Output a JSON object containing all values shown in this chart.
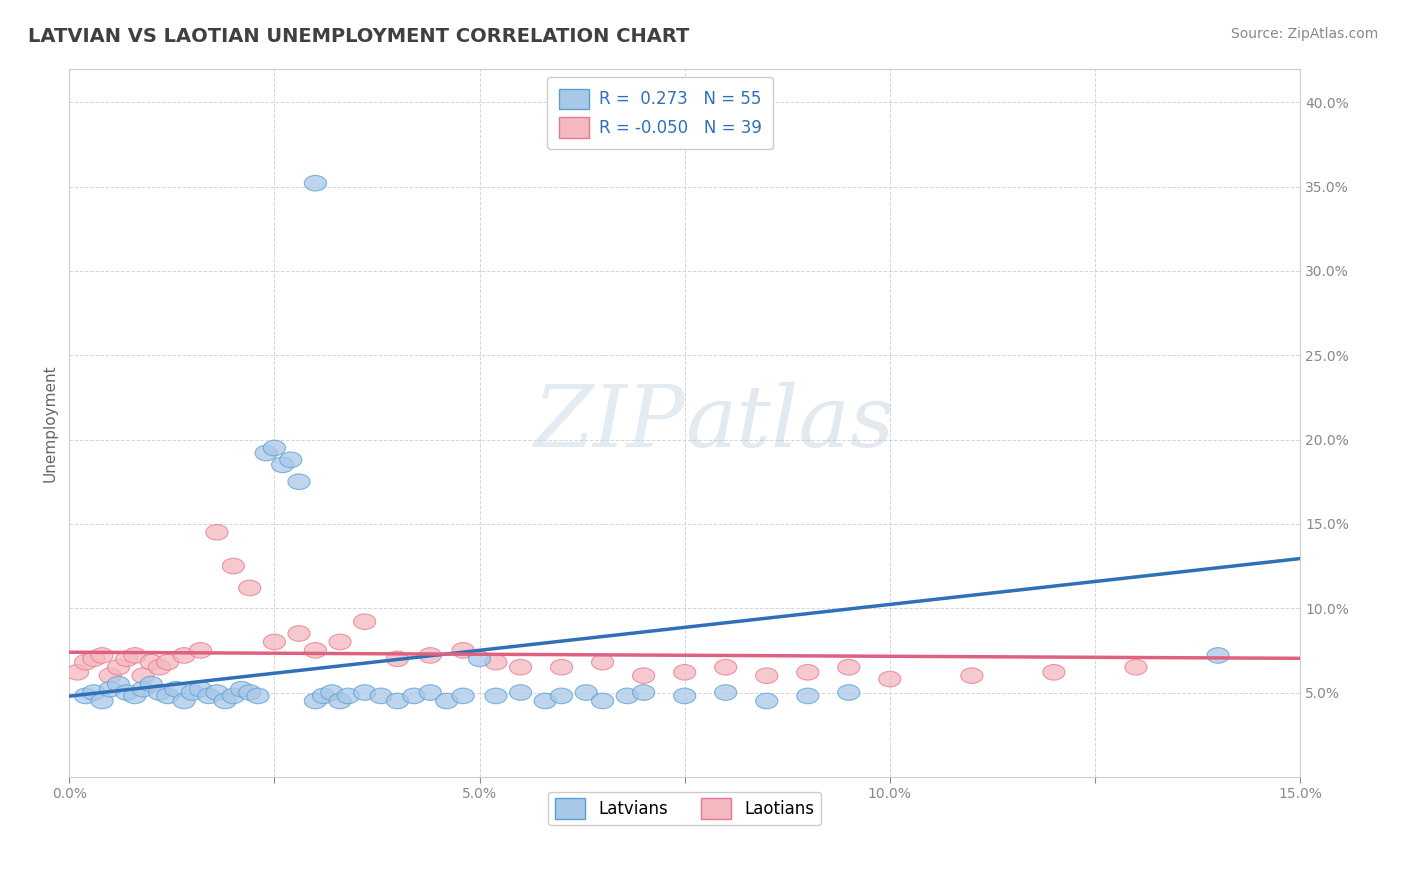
{
  "title": "LATVIAN VS LAOTIAN UNEMPLOYMENT CORRELATION CHART",
  "source_text": "Source: ZipAtlas.com",
  "watermark": "ZIPatlas",
  "ylabel": "Unemployment",
  "xlim": [
    0.0,
    0.15
  ],
  "ylim": [
    0.0,
    0.42
  ],
  "x_ticks": [
    0.0,
    0.025,
    0.05,
    0.075,
    0.1,
    0.125,
    0.15
  ],
  "x_tick_labels": [
    "0.0%",
    "",
    "5.0%",
    "",
    "10.0%",
    "",
    "15.0%"
  ],
  "y_ticks": [
    0.0,
    0.05,
    0.1,
    0.15,
    0.2,
    0.25,
    0.3,
    0.35,
    0.4
  ],
  "y_tick_labels": [
    "",
    "5.0%",
    "10.0%",
    "15.0%",
    "20.0%",
    "25.0%",
    "30.0%",
    "35.0%",
    "40.0%"
  ],
  "latvian_color": "#a8c8e8",
  "laotian_color": "#f4b8c0",
  "latvian_edge_color": "#5a9fd4",
  "laotian_edge_color": "#e87890",
  "latvian_line_color": "#3070b8",
  "laotian_line_color": "#e06080",
  "legend_latvian_r": 0.273,
  "legend_latvian_n": 55,
  "legend_laotian_r": -0.05,
  "legend_laotian_n": 39,
  "latvians_x": [
    0.002,
    0.003,
    0.004,
    0.005,
    0.006,
    0.007,
    0.008,
    0.009,
    0.01,
    0.011,
    0.012,
    0.013,
    0.014,
    0.015,
    0.016,
    0.017,
    0.018,
    0.019,
    0.02,
    0.021,
    0.022,
    0.023,
    0.024,
    0.025,
    0.026,
    0.027,
    0.028,
    0.03,
    0.031,
    0.032,
    0.033,
    0.034,
    0.036,
    0.038,
    0.04,
    0.042,
    0.044,
    0.046,
    0.048,
    0.05,
    0.052,
    0.055,
    0.058,
    0.06,
    0.063,
    0.065,
    0.068,
    0.07,
    0.075,
    0.08,
    0.085,
    0.09,
    0.095,
    0.14,
    0.03
  ],
  "latvians_y": [
    0.048,
    0.05,
    0.045,
    0.052,
    0.055,
    0.05,
    0.048,
    0.052,
    0.055,
    0.05,
    0.048,
    0.052,
    0.045,
    0.05,
    0.052,
    0.048,
    0.05,
    0.045,
    0.048,
    0.052,
    0.05,
    0.048,
    0.192,
    0.195,
    0.185,
    0.188,
    0.175,
    0.045,
    0.048,
    0.05,
    0.045,
    0.048,
    0.05,
    0.048,
    0.045,
    0.048,
    0.05,
    0.045,
    0.048,
    0.07,
    0.048,
    0.05,
    0.045,
    0.048,
    0.05,
    0.045,
    0.048,
    0.05,
    0.048,
    0.05,
    0.045,
    0.048,
    0.05,
    0.072,
    0.352
  ],
  "laotians_x": [
    0.001,
    0.002,
    0.003,
    0.004,
    0.005,
    0.006,
    0.007,
    0.008,
    0.009,
    0.01,
    0.011,
    0.012,
    0.014,
    0.016,
    0.018,
    0.02,
    0.022,
    0.025,
    0.028,
    0.03,
    0.033,
    0.036,
    0.04,
    0.044,
    0.048,
    0.052,
    0.055,
    0.06,
    0.065,
    0.07,
    0.075,
    0.08,
    0.085,
    0.09,
    0.095,
    0.1,
    0.11,
    0.12,
    0.13
  ],
  "laotians_y": [
    0.062,
    0.068,
    0.07,
    0.072,
    0.06,
    0.065,
    0.07,
    0.072,
    0.06,
    0.068,
    0.065,
    0.068,
    0.072,
    0.075,
    0.145,
    0.125,
    0.112,
    0.08,
    0.085,
    0.075,
    0.08,
    0.092,
    0.07,
    0.072,
    0.075,
    0.068,
    0.065,
    0.065,
    0.068,
    0.06,
    0.062,
    0.065,
    0.06,
    0.062,
    0.065,
    0.058,
    0.06,
    0.062,
    0.065
  ],
  "background_color": "#ffffff",
  "grid_color": "#cccccc",
  "title_color": "#404040",
  "axis_label_color": "#666666",
  "tick_color": "#888888",
  "title_fontsize": 14,
  "source_fontsize": 10,
  "axis_label_fontsize": 11,
  "tick_fontsize": 10,
  "legend_fontsize": 12
}
